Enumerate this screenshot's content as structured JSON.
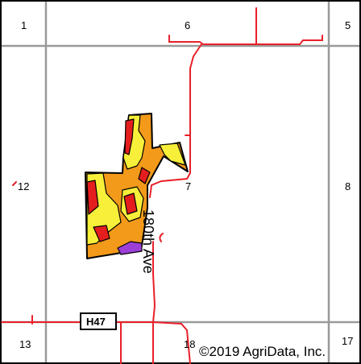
{
  "map": {
    "section_numbers": {
      "s1": "1",
      "s6": "6",
      "s5": "5",
      "s12": "12",
      "s7": "7",
      "s8": "8",
      "s13": "13",
      "s18": "18",
      "s17": "17"
    },
    "road_label": "180th Ave",
    "highway_label": "H47",
    "copyright": "©2019 AgriData, Inc.",
    "colors": {
      "section_line": "#9a9a9a",
      "road": "#e8202a",
      "field_border": "#000000",
      "zone_orange": "#f39a1a",
      "zone_yellow": "#f7ef3a",
      "zone_red": "#e41e1e",
      "zone_purple": "#9b3fd6"
    }
  }
}
